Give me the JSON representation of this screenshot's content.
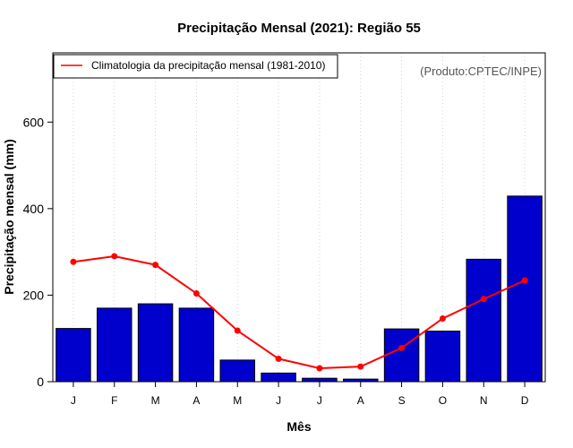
{
  "chart_data": {
    "type": "bar",
    "title": "Precipitação Mensal (2021): Região 55",
    "xlabel": "Mês",
    "ylabel": "Precipitação mensal (mm)",
    "ylim": [
      0,
      760
    ],
    "yticks": [
      0,
      200,
      400,
      600
    ],
    "grid": "vertical-dotted",
    "categories": [
      "J",
      "F",
      "M",
      "A",
      "M",
      "J",
      "J",
      "A",
      "S",
      "O",
      "N",
      "D"
    ],
    "series": [
      {
        "name": "Precipitação mensal 2021",
        "type": "bar",
        "color": "#0000cc",
        "values": [
          123,
          170,
          180,
          170,
          50,
          20,
          8,
          6,
          122,
          117,
          283,
          429
        ]
      },
      {
        "name": "Climatologia da precipitação mensal (1981-2010)",
        "type": "line",
        "color": "#ff0000",
        "values": [
          277,
          290,
          270,
          204,
          118,
          53,
          31,
          35,
          78,
          146,
          191,
          234
        ]
      }
    ],
    "legend": {
      "position": "top-left",
      "label": "Climatologia da precipitação mensal (1981-2010)"
    },
    "annotation": "(Produto:CPTEC/INPE)"
  }
}
